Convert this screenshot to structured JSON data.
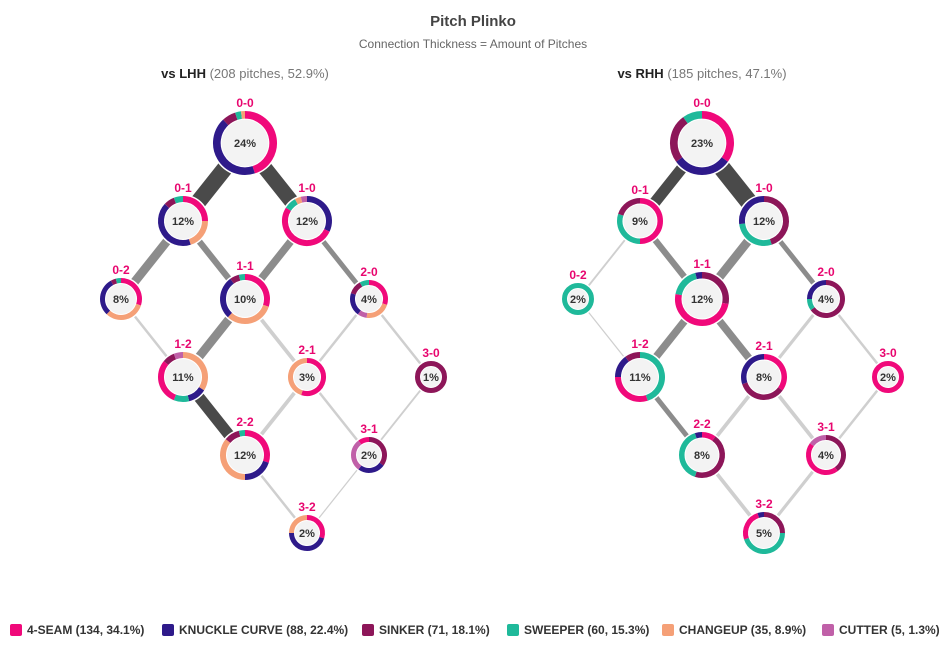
{
  "chart_data": {
    "type": "network",
    "title": "Pitch Plinko",
    "subtitle": "Connection Thickness = Amount of Pitches",
    "colors": {
      "4-SEAM": "#f0097a",
      "KNUCKLE CURVE": "#2e1a8a",
      "SINKER": "#8d1659",
      "SWEEPER": "#1fb99a",
      "CHANGEUP": "#f5a077",
      "CUTTER": "#c060a8"
    },
    "legend": [
      {
        "pitch": "4-SEAM",
        "label": "4-SEAM (134, 34.1%)"
      },
      {
        "pitch": "KNUCKLE CURVE",
        "label": "KNUCKLE CURVE (88, 22.4%)"
      },
      {
        "pitch": "SINKER",
        "label": "SINKER (71, 18.1%)"
      },
      {
        "pitch": "SWEEPER",
        "label": "SWEEPER (60, 15.3%)"
      },
      {
        "pitch": "CHANGEUP",
        "label": "CHANGEUP (35, 8.9%)"
      },
      {
        "pitch": "CUTTER",
        "label": "CUTTER (5, 1.3%)"
      }
    ],
    "panels": [
      {
        "head_bold": "vs LHH",
        "head_rest": "(208 pitches, 52.9%)",
        "nodes": [
          {
            "count": "0-0",
            "pct": "24%",
            "mix": {
              "4-SEAM": 0.45,
              "KNUCKLE CURVE": 0.43,
              "SINKER": 0.07,
              "SWEEPER": 0.03,
              "CHANGEUP": 0.02
            }
          },
          {
            "count": "0-1",
            "pct": "12%",
            "mix": {
              "4-SEAM": 0.25,
              "CHANGEUP": 0.2,
              "KNUCKLE CURVE": 0.42,
              "SINKER": 0.07,
              "SWEEPER": 0.06
            }
          },
          {
            "count": "1-0",
            "pct": "12%",
            "mix": {
              "KNUCKLE CURVE": 0.32,
              "4-SEAM": 0.52,
              "SWEEPER": 0.08,
              "CHANGEUP": 0.04,
              "CUTTER": 0.04
            }
          },
          {
            "count": "0-2",
            "pct": "8%",
            "mix": {
              "4-SEAM": 0.3,
              "CHANGEUP": 0.32,
              "KNUCKLE CURVE": 0.3,
              "SINKER": 0.04,
              "SWEEPER": 0.04
            }
          },
          {
            "count": "1-1",
            "pct": "10%",
            "mix": {
              "4-SEAM": 0.3,
              "CHANGEUP": 0.32,
              "KNUCKLE CURVE": 0.28,
              "SINKER": 0.06,
              "SWEEPER": 0.04
            }
          },
          {
            "count": "2-0",
            "pct": "4%",
            "mix": {
              "4-SEAM": 0.3,
              "CHANGEUP": 0.22,
              "CUTTER": 0.08,
              "KNUCKLE CURVE": 0.2,
              "SINKER": 0.12,
              "SWEEPER": 0.08
            }
          },
          {
            "count": "1-2",
            "pct": "11%",
            "mix": {
              "CHANGEUP": 0.34,
              "KNUCKLE CURVE": 0.12,
              "SWEEPER": 0.1,
              "4-SEAM": 0.3,
              "SINKER": 0.08,
              "CUTTER": 0.06
            }
          },
          {
            "count": "2-1",
            "pct": "3%",
            "mix": {
              "4-SEAM": 0.55,
              "CHANGEUP": 0.45
            }
          },
          {
            "count": "3-0",
            "pct": "1%",
            "mix": {
              "SINKER": 1.0
            }
          },
          {
            "count": "2-2",
            "pct": "12%",
            "mix": {
              "4-SEAM": 0.3,
              "KNUCKLE CURVE": 0.2,
              "CHANGEUP": 0.36,
              "SINKER": 0.1,
              "SWEEPER": 0.04
            }
          },
          {
            "count": "3-1",
            "pct": "2%",
            "mix": {
              "SINKER": 0.35,
              "KNUCKLE CURVE": 0.25,
              "CUTTER": 0.3,
              "4-SEAM": 0.1
            }
          },
          {
            "count": "3-2",
            "pct": "2%",
            "mix": {
              "4-SEAM": 0.3,
              "KNUCKLE CURVE": 0.45,
              "CHANGEUP": 0.25
            }
          }
        ]
      },
      {
        "head_bold": "vs RHH",
        "head_rest": "(185 pitches, 47.1%)",
        "nodes": [
          {
            "count": "0-0",
            "pct": "23%",
            "mix": {
              "4-SEAM": 0.35,
              "KNUCKLE CURVE": 0.3,
              "SINKER": 0.25,
              "SWEEPER": 0.1
            }
          },
          {
            "count": "0-1",
            "pct": "9%",
            "mix": {
              "4-SEAM": 0.5,
              "SWEEPER": 0.3,
              "SINKER": 0.2
            }
          },
          {
            "count": "1-0",
            "pct": "12%",
            "mix": {
              "SINKER": 0.45,
              "SWEEPER": 0.28,
              "KNUCKLE CURVE": 0.27
            }
          },
          {
            "count": "0-2",
            "pct": "2%",
            "mix": {
              "SWEEPER": 1.0
            }
          },
          {
            "count": "1-1",
            "pct": "12%",
            "mix": {
              "SINKER": 0.28,
              "4-SEAM": 0.5,
              "SWEEPER": 0.18,
              "KNUCKLE CURVE": 0.04
            }
          },
          {
            "count": "2-0",
            "pct": "4%",
            "mix": {
              "SINKER": 0.65,
              "SWEEPER": 0.1,
              "KNUCKLE CURVE": 0.25
            }
          },
          {
            "count": "1-2",
            "pct": "11%",
            "mix": {
              "SWEEPER": 0.45,
              "4-SEAM": 0.3,
              "KNUCKLE CURVE": 0.15,
              "SINKER": 0.1
            }
          },
          {
            "count": "2-1",
            "pct": "8%",
            "mix": {
              "4-SEAM": 0.35,
              "SINKER": 0.35,
              "KNUCKLE CURVE": 0.3
            }
          },
          {
            "count": "3-0",
            "pct": "2%",
            "mix": {
              "4-SEAM": 1.0
            }
          },
          {
            "count": "2-2",
            "pct": "8%",
            "mix": {
              "4-SEAM": 0.1,
              "SINKER": 0.45,
              "SWEEPER": 0.4,
              "KNUCKLE CURVE": 0.05
            }
          },
          {
            "count": "3-1",
            "pct": "4%",
            "mix": {
              "SINKER": 0.4,
              "4-SEAM": 0.45,
              "CUTTER": 0.15
            }
          },
          {
            "count": "3-2",
            "pct": "5%",
            "mix": {
              "SINKER": 0.25,
              "SWEEPER": 0.45,
              "4-SEAM": 0.25,
              "KNUCKLE CURVE": 0.05
            }
          }
        ]
      }
    ],
    "links": [
      {
        "panel": "vs LHH",
        "edges": [
          {
            "from": "0-0",
            "to": "0-1",
            "weight": 13
          },
          {
            "from": "0-0",
            "to": "1-0",
            "weight": 12
          },
          {
            "from": "0-1",
            "to": "0-2",
            "weight": 7
          },
          {
            "from": "0-1",
            "to": "1-1",
            "weight": 5
          },
          {
            "from": "1-0",
            "to": "1-1",
            "weight": 6
          },
          {
            "from": "1-0",
            "to": "2-0",
            "weight": 4
          },
          {
            "from": "0-2",
            "to": "1-2",
            "weight": 2
          },
          {
            "from": "1-1",
            "to": "1-2",
            "weight": 7
          },
          {
            "from": "1-1",
            "to": "2-1",
            "weight": 3
          },
          {
            "from": "2-0",
            "to": "2-1",
            "weight": 2
          },
          {
            "from": "2-0",
            "to": "3-0",
            "weight": 2
          },
          {
            "from": "1-2",
            "to": "2-2",
            "weight": 9
          },
          {
            "from": "2-1",
            "to": "2-2",
            "weight": 3
          },
          {
            "from": "2-1",
            "to": "3-1",
            "weight": 2
          },
          {
            "from": "3-0",
            "to": "3-1",
            "weight": 1.5
          },
          {
            "from": "2-2",
            "to": "3-2",
            "weight": 2
          },
          {
            "from": "3-1",
            "to": "3-2",
            "weight": 1
          }
        ]
      },
      {
        "panel": "vs RHH",
        "edges": [
          {
            "from": "0-0",
            "to": "0-1",
            "weight": 9
          },
          {
            "from": "0-0",
            "to": "1-0",
            "weight": 14
          },
          {
            "from": "0-1",
            "to": "0-2",
            "weight": 1.5
          },
          {
            "from": "0-1",
            "to": "1-1",
            "weight": 5
          },
          {
            "from": "1-0",
            "to": "1-1",
            "weight": 7
          },
          {
            "from": "1-0",
            "to": "2-0",
            "weight": 4
          },
          {
            "from": "0-2",
            "to": "1-2",
            "weight": 1
          },
          {
            "from": "1-1",
            "to": "1-2",
            "weight": 6
          },
          {
            "from": "1-1",
            "to": "2-1",
            "weight": 6
          },
          {
            "from": "2-0",
            "to": "2-1",
            "weight": 2.5
          },
          {
            "from": "2-0",
            "to": "3-0",
            "weight": 2
          },
          {
            "from": "1-2",
            "to": "2-2",
            "weight": 4
          },
          {
            "from": "2-1",
            "to": "2-2",
            "weight": 3
          },
          {
            "from": "2-1",
            "to": "3-1",
            "weight": 3
          },
          {
            "from": "3-0",
            "to": "3-1",
            "weight": 2
          },
          {
            "from": "2-2",
            "to": "3-2",
            "weight": 3
          },
          {
            "from": "3-1",
            "to": "3-2",
            "weight": 2.5
          }
        ]
      }
    ]
  }
}
